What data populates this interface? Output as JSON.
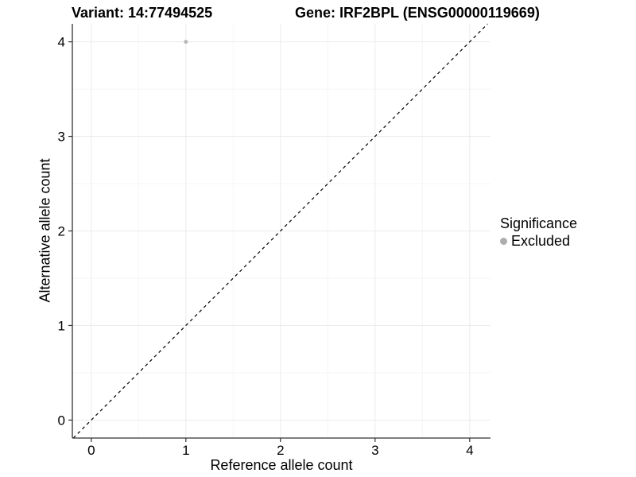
{
  "header": {
    "title_left": "Variant: 14:77494525",
    "title_right": "Gene: IRF2BPL (ENSG00000119669)"
  },
  "chart_data": {
    "type": "scatter",
    "title": "Variant: 14:77494525",
    "subtitle": "Gene: IRF2BPL (ENSG00000119669)",
    "xlabel": "Reference allele count",
    "ylabel": "Alternative allele count",
    "xlim": [
      -0.2,
      4.22
    ],
    "ylim": [
      -0.19,
      4.19
    ],
    "x_ticks": [
      0,
      1,
      2,
      3,
      4
    ],
    "y_ticks": [
      0,
      1,
      2,
      3,
      4
    ],
    "x_minor": [
      0.5,
      1.5,
      2.5,
      3.5
    ],
    "y_minor": [
      0.5,
      1.5,
      2.5,
      3.5
    ],
    "grid": "major+minor",
    "series": [
      {
        "name": "Excluded",
        "color": "#b8b8b8",
        "point_radius": 2.5,
        "points": [
          [
            1,
            4
          ]
        ]
      }
    ],
    "identity_line": {
      "style": "dashed",
      "color": "#000000",
      "from": [
        -0.19,
        -0.19
      ],
      "to": [
        4.19,
        4.19
      ]
    },
    "legend": {
      "title": "Significance",
      "position": "right",
      "entries": [
        {
          "label": "Excluded",
          "color": "#adadad"
        }
      ]
    }
  },
  "colors": {
    "background": "#ffffff",
    "grid_major": "#ebebeb",
    "grid_minor": "#f5f5f5",
    "axis": "#333333",
    "tick_label": "#000000",
    "text": "#000000"
  }
}
